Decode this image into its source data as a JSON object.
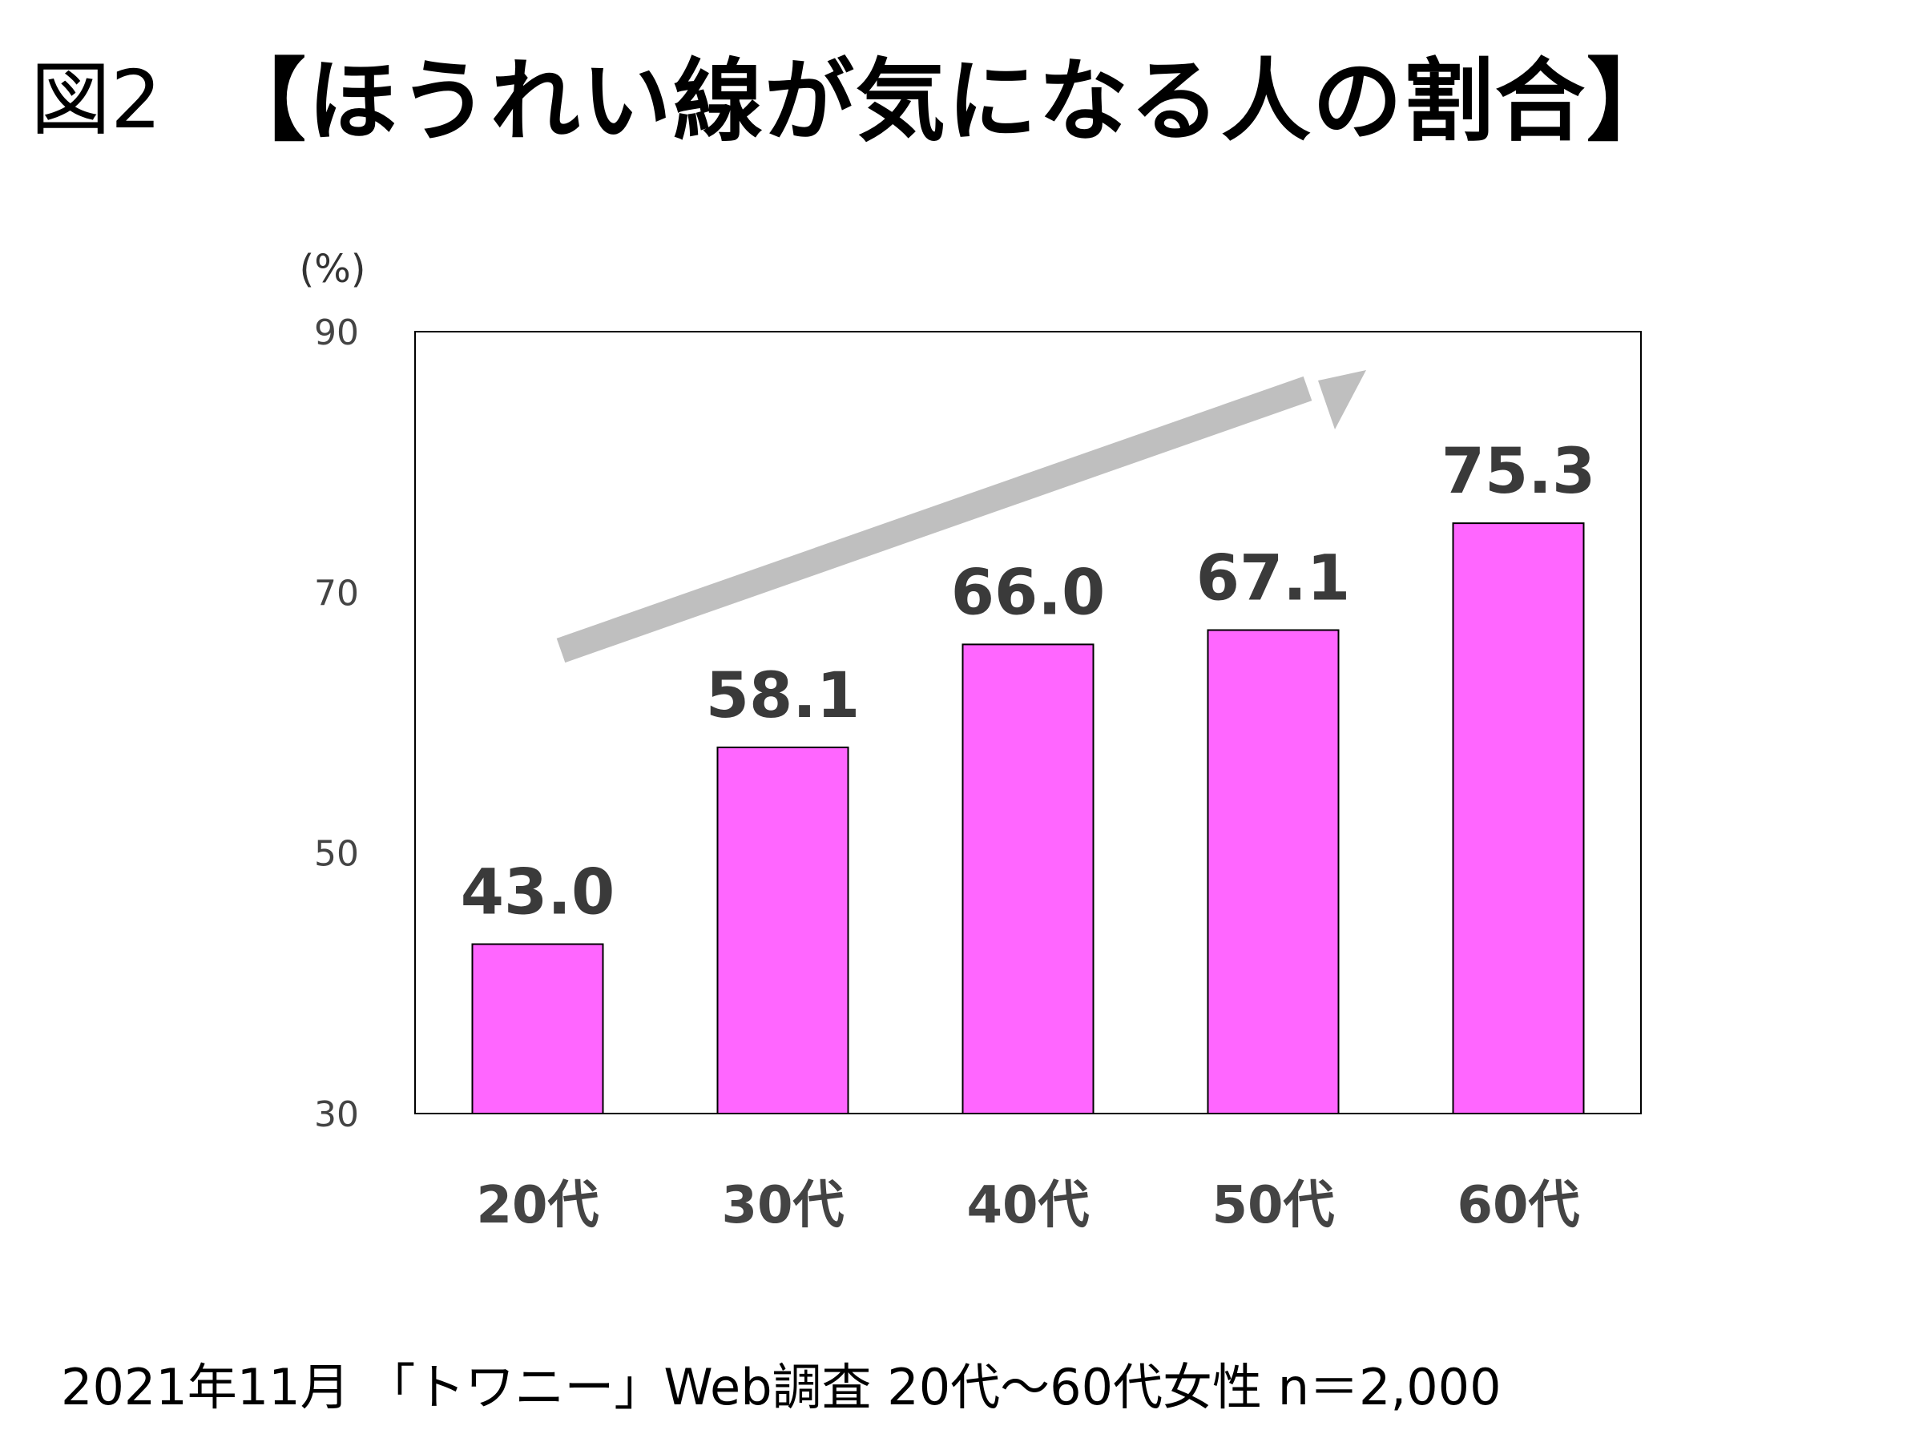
{
  "figure": {
    "label": "図2",
    "title": "【ほうれい線が気になる人の割合】"
  },
  "chart_data": {
    "type": "bar",
    "unit_label": "(%)",
    "categories": [
      "20代",
      "30代",
      "40代",
      "50代",
      "60代"
    ],
    "values": [
      43.0,
      58.1,
      66.0,
      67.1,
      75.3
    ],
    "value_labels": [
      "43.0",
      "58.1",
      "66.0",
      "67.1",
      "75.3"
    ],
    "y_ticks": [
      90,
      70,
      50,
      30
    ],
    "ylim": [
      30,
      90
    ],
    "grid": false,
    "legend": "none",
    "bar_color": "#ff66ff",
    "trend_arrow_color": "#bfbfbf",
    "annotation": "upward trend arrow"
  },
  "source_note": "2021年11月 「トワニー」Web調査 20代〜60代女性 n＝2,000"
}
